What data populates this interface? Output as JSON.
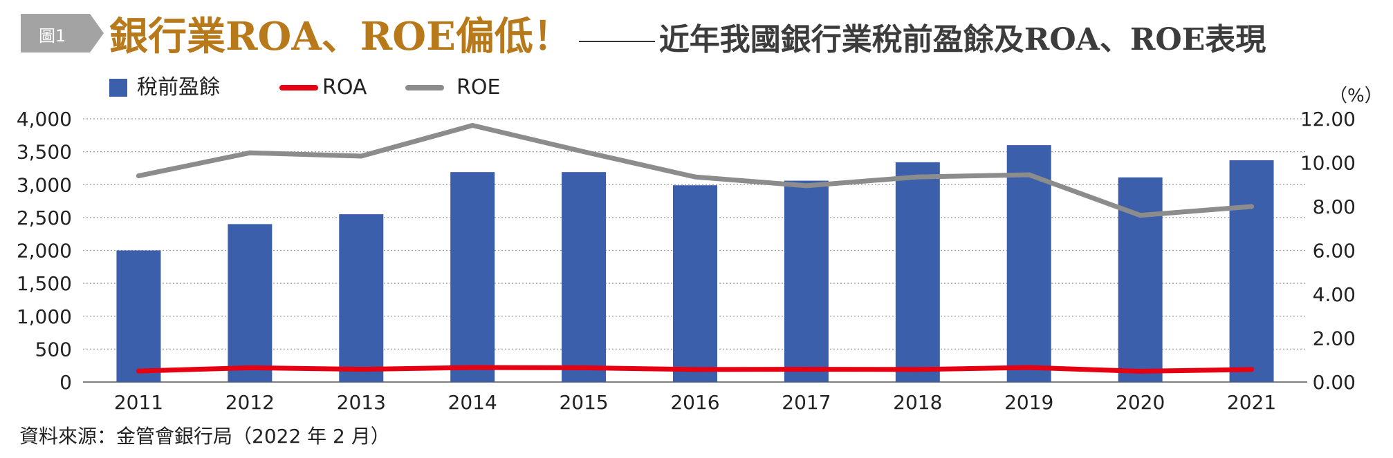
{
  "figure_tag": "圖1",
  "title": {
    "main": "銀行業ROA、ROE偏低！",
    "sub": "近年我國銀行業稅前盈餘及ROA、ROE表現"
  },
  "unit_right": "（%）",
  "source": "資料來源：金管會銀行局（2022 年 2 月）",
  "colors": {
    "bar": "#3b5fab",
    "roa": "#e60012",
    "roe": "#8c8c8c",
    "title_accent": "#b8791b",
    "tag_bg": "#a3a3a3"
  },
  "chart_data": {
    "type": "bar",
    "categories": [
      "2011",
      "2012",
      "2013",
      "2014",
      "2015",
      "2016",
      "2017",
      "2018",
      "2019",
      "2020",
      "2021"
    ],
    "series": [
      {
        "name": "稅前盈餘",
        "type": "bar",
        "axis": "left",
        "values": [
          2000,
          2400,
          2550,
          3190,
          3190,
          2990,
          3060,
          3340,
          3600,
          3110,
          3370
        ]
      },
      {
        "name": "ROA",
        "type": "line",
        "axis": "right",
        "values": [
          0.5,
          0.65,
          0.58,
          0.66,
          0.65,
          0.57,
          0.58,
          0.57,
          0.66,
          0.49,
          0.57
        ]
      },
      {
        "name": "ROE",
        "type": "line",
        "axis": "right",
        "values": [
          9.4,
          10.45,
          10.3,
          11.7,
          10.5,
          9.35,
          8.95,
          9.35,
          9.45,
          7.6,
          8.0
        ]
      }
    ],
    "y_left": {
      "ylim": [
        0,
        4000
      ],
      "ticks": [
        0,
        500,
        1000,
        1500,
        2000,
        2500,
        3000,
        3500,
        4000
      ],
      "tick_labels": [
        "0",
        "500",
        "1,000",
        "1,500",
        "2,000",
        "2,500",
        "3,000",
        "3,500",
        "4,000"
      ]
    },
    "y_right": {
      "ylim": [
        0,
        12
      ],
      "ticks": [
        0,
        2,
        4,
        6,
        8,
        10,
        12
      ],
      "tick_labels": [
        "0.00",
        "2.00",
        "4.00",
        "6.00",
        "8.00",
        "10.00",
        "12.00"
      ]
    },
    "grid": true,
    "legend_position": "top-left"
  }
}
